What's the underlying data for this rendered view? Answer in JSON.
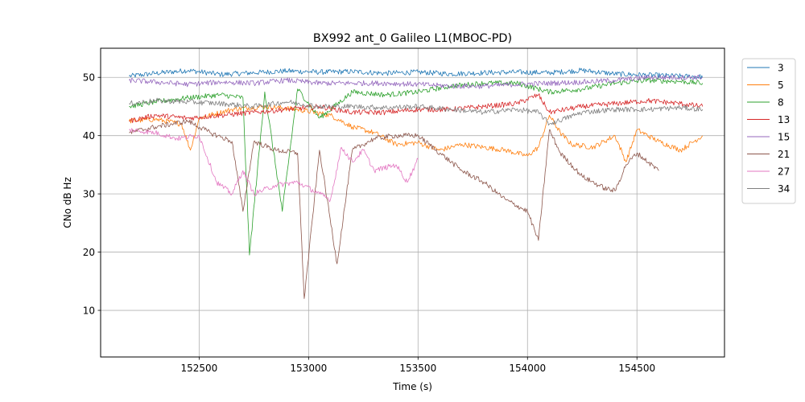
{
  "chart_data": {
    "type": "line",
    "title": "BX992 ant_0 Galileo L1(MBOC-PD)",
    "xlabel": "Time (s)",
    "ylabel": "CNo dB Hz",
    "xlim": [
      152050,
      154900
    ],
    "ylim": [
      2,
      55
    ],
    "xticks": [
      152500,
      153000,
      153500,
      154000,
      154500
    ],
    "yticks": [
      10,
      20,
      30,
      40,
      50
    ],
    "grid": true,
    "legend_position": "outside-right",
    "series": [
      {
        "name": "3",
        "color": "#1f77b4",
        "x": [
          152180,
          152300,
          152450,
          152600,
          152750,
          152900,
          153050,
          153200,
          153350,
          153500,
          153650,
          153800,
          153950,
          154100,
          154250,
          154400,
          154550,
          154700,
          154800
        ],
        "y": [
          50.2,
          50.7,
          51.2,
          50.5,
          50.8,
          51.1,
          50.9,
          51.0,
          50.7,
          50.9,
          50.6,
          50.8,
          50.9,
          50.8,
          51.2,
          50.6,
          50.4,
          50.2,
          50.1
        ]
      },
      {
        "name": "5",
        "color": "#ff7f0e",
        "x": [
          152180,
          152300,
          152420,
          152460,
          152500,
          152650,
          152800,
          152950,
          153100,
          153200,
          153300,
          153400,
          153500,
          153600,
          153700,
          153800,
          153900,
          154000,
          154050,
          154100,
          154150,
          154200,
          154300,
          154400,
          154450,
          154500,
          154600,
          154700,
          154800
        ],
        "y": [
          42.5,
          42.8,
          42.0,
          37.5,
          43.0,
          44.5,
          45.0,
          44.5,
          43.5,
          41.5,
          40.5,
          38.5,
          38.8,
          37.5,
          38.5,
          38.0,
          37.5,
          36.5,
          38.0,
          43.5,
          40.5,
          38.5,
          38.0,
          40.0,
          35.5,
          41.0,
          39.0,
          37.5,
          40.0
        ]
      },
      {
        "name": "8",
        "color": "#2ca02c",
        "x": [
          152180,
          152300,
          152450,
          152600,
          152700,
          152730,
          152800,
          152880,
          152950,
          153050,
          153200,
          153350,
          153500,
          153650,
          153800,
          153950,
          154100,
          154250,
          154400,
          154550,
          154700,
          154800
        ],
        "y": [
          45.0,
          45.8,
          46.5,
          47.0,
          46.5,
          19.5,
          47.5,
          27.0,
          48.0,
          43.0,
          47.5,
          47.0,
          47.5,
          48.5,
          49.0,
          49.0,
          47.5,
          48.0,
          49.0,
          49.5,
          49.3,
          49.0
        ]
      },
      {
        "name": "13",
        "color": "#d62728",
        "x": [
          152180,
          152300,
          152450,
          152600,
          152750,
          152900,
          153050,
          153200,
          153350,
          153500,
          153650,
          153800,
          153950,
          154050,
          154100,
          154250,
          154400,
          154550,
          154700,
          154800
        ],
        "y": [
          42.5,
          43.5,
          43.0,
          43.5,
          44.0,
          44.5,
          45.0,
          44.0,
          44.0,
          44.5,
          44.5,
          45.0,
          45.5,
          47.0,
          44.0,
          45.0,
          45.5,
          46.0,
          45.5,
          45.0
        ]
      },
      {
        "name": "15",
        "color": "#9467bd",
        "x": [
          152180,
          152300,
          152450,
          152600,
          152750,
          152900,
          153050,
          153200,
          153350,
          153500,
          153650,
          153800,
          153950,
          154100,
          154250,
          154400,
          154550,
          154700,
          154800
        ],
        "y": [
          49.5,
          49.2,
          48.8,
          49.2,
          49.0,
          49.5,
          49.0,
          49.0,
          49.0,
          48.8,
          48.5,
          48.5,
          48.8,
          49.0,
          49.2,
          49.5,
          50.0,
          50.0,
          50.0
        ]
      },
      {
        "name": "21",
        "color": "#8c564b",
        "x": [
          152180,
          152300,
          152450,
          152550,
          152650,
          152700,
          152750,
          152850,
          152950,
          152980,
          153050,
          153130,
          153200,
          153300,
          153400,
          153500,
          153600,
          153700,
          153800,
          153900,
          153950,
          154000,
          154050,
          154100,
          154150,
          154250,
          154350,
          154400,
          154450,
          154500,
          154600
        ],
        "y": [
          40.5,
          41.5,
          42.5,
          40.5,
          39.0,
          27.0,
          39.0,
          37.5,
          37.0,
          12.0,
          37.5,
          18.0,
          37.5,
          39.5,
          40.0,
          40.0,
          37.0,
          34.0,
          32.0,
          29.0,
          28.0,
          27.0,
          22.0,
          41.0,
          37.0,
          33.0,
          31.0,
          30.5,
          35.0,
          37.0,
          34.0
        ]
      },
      {
        "name": "27",
        "color": "#e377c2",
        "x": [
          152180,
          152300,
          152400,
          152500,
          152580,
          152650,
          152700,
          152750,
          152850,
          152950,
          153050,
          153100,
          153150,
          153200,
          153250,
          153300,
          153400,
          153450,
          153500
        ],
        "y": [
          41.0,
          40.5,
          39.5,
          40.0,
          32.0,
          30.0,
          34.0,
          30.0,
          31.5,
          32.0,
          30.0,
          29.0,
          38.0,
          35.5,
          37.5,
          34.0,
          35.0,
          32.0,
          36.0
        ]
      },
      {
        "name": "34",
        "color": "#7f7f7f",
        "x": [
          152180,
          152300,
          152450,
          152600,
          152750,
          152900,
          153050,
          153200,
          153350,
          153500,
          153650,
          153800,
          153950,
          154050,
          154100,
          154250,
          154400,
          154550,
          154700,
          154800
        ],
        "y": [
          45.5,
          46.0,
          45.8,
          45.5,
          45.0,
          45.8,
          45.0,
          45.0,
          44.8,
          45.0,
          44.5,
          44.0,
          44.5,
          44.0,
          42.0,
          44.0,
          44.5,
          44.5,
          44.8,
          44.5
        ]
      }
    ]
  }
}
